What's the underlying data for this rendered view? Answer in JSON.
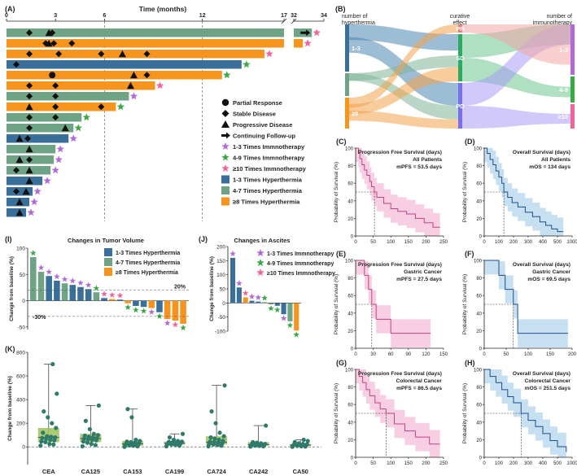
{
  "figure": {
    "panel_labels": [
      "(A)",
      "(B)",
      "(C)",
      "(D)",
      "(E)",
      "(F)",
      "(G)",
      "(H)",
      "(I)",
      "(J)",
      "(K)"
    ]
  },
  "colors": {
    "hyper_1_3": "#3a6f9a",
    "hyper_4_7": "#6fa386",
    "hyper_8": "#f7941d",
    "immuno_1_3": "#b36ad9",
    "immuno_4_9": "#3aa845",
    "immuno_10": "#f4629c",
    "pfs": "#c2438a",
    "pfs_band": "#f6c6dd",
    "os": "#1f4f8c",
    "os_band": "#bcd9ef",
    "box": "#9bc25a",
    "dot": "#2f7a6b"
  },
  "swimmer": {
    "title": "Time (months)",
    "ticks": [
      "0",
      "3",
      "6",
      "12",
      "17",
      "32",
      "34"
    ],
    "legend": [
      {
        "label": "Partial Response",
        "icon": "circle-icon"
      },
      {
        "label": "Stable Disease",
        "icon": "diamond-icon"
      },
      {
        "label": "Progressive Disease",
        "icon": "triangle-icon"
      },
      {
        "label": "Continuing Follow-up",
        "icon": "arrow-icon"
      },
      {
        "label": "1-3 Times Immnotherapy",
        "icon": "star-icon",
        "color": "#b36ad9"
      },
      {
        "label": "4-9 Times Immnotherapy",
        "icon": "star-icon",
        "color": "#3aa845"
      },
      {
        "label": "≥10 Times Immnotherapy",
        "icon": "star-icon",
        "color": "#f4629c"
      },
      {
        "label": "1-3 Times Hyperthermia",
        "icon": "square-icon",
        "color": "#3a6f9a"
      },
      {
        "label": "4-7 Times Hyperthermia",
        "icon": "square-icon",
        "color": "#6fa386"
      },
      {
        "label": "≥8 Times Hyperthermia",
        "icon": "square-icon",
        "color": "#f7941d"
      }
    ],
    "rows": [
      {
        "end": 33.2,
        "g": "4-7",
        "star": "10",
        "arrow": true,
        "markers": [
          [
            "d",
            1.4
          ],
          [
            "t",
            2.6
          ],
          [
            "d",
            2.8
          ]
        ]
      },
      {
        "end": 32.6,
        "g": "8",
        "star": "10",
        "markers": [
          [
            "d",
            2.4
          ],
          [
            "d",
            2.9
          ],
          [
            "t",
            2.6
          ],
          [
            "d",
            4.0
          ]
        ]
      },
      {
        "end": 15.8,
        "g": "8",
        "star": "10",
        "markers": [
          [
            "d",
            1.4
          ],
          [
            "d",
            3.2
          ],
          [
            "d",
            5.8
          ],
          [
            "t",
            7.1
          ],
          [
            "d",
            8.6
          ]
        ]
      },
      {
        "end": 14.4,
        "g": "1-3",
        "star": "4-9",
        "markers": [
          [
            "d",
            0.6
          ]
        ]
      },
      {
        "end": 13.2,
        "g": "8",
        "star": "4-9",
        "markers": [
          [
            "c",
            2.8
          ],
          [
            "t",
            7.8
          ],
          [
            "d",
            8.6
          ]
        ]
      },
      {
        "end": 9.1,
        "g": "8",
        "star": "10",
        "markers": [
          [
            "d",
            1.4
          ],
          [
            "d",
            3.0
          ],
          [
            "t",
            7.6
          ]
        ]
      },
      {
        "end": 7.5,
        "g": "4-7",
        "star": "1-3",
        "markers": [
          [
            "d",
            1.4
          ],
          [
            "d",
            3.0
          ]
        ]
      },
      {
        "end": 6.7,
        "g": "8",
        "star": "4-9",
        "markers": [
          [
            "t",
            1.4
          ],
          [
            "d",
            3.0
          ],
          [
            "d",
            5.8
          ]
        ]
      },
      {
        "end": 4.6,
        "g": "4-7",
        "star": "4-9",
        "markers": [
          [
            "d",
            1.4
          ],
          [
            "d",
            3.0
          ]
        ]
      },
      {
        "end": 4.1,
        "g": "4-7",
        "star": "4-9",
        "markers": [
          [
            "d",
            1.4
          ],
          [
            "t",
            3.6
          ]
        ]
      },
      {
        "end": 3.8,
        "g": "1-3",
        "star": "1-3",
        "markers": [
          [
            "t",
            0.8
          ],
          [
            "d",
            1.3
          ]
        ]
      },
      {
        "end": 3.0,
        "g": "4-7",
        "star": "1-3",
        "markers": [
          [
            "t",
            1.4
          ]
        ]
      },
      {
        "end": 2.9,
        "g": "4-7",
        "star": "1-3",
        "markers": [
          [
            "t",
            0.8
          ],
          [
            "d",
            1.4
          ]
        ]
      },
      {
        "end": 2.7,
        "g": "4-7",
        "star": "1-3",
        "markers": [
          [
            "t",
            1.4
          ],
          [
            "d",
            0.6
          ]
        ]
      },
      {
        "end": 2.2,
        "g": "1-3",
        "star": "1-3",
        "markers": [
          [
            "t",
            1.4
          ]
        ]
      },
      {
        "end": 1.6,
        "g": "1-3",
        "star": "1-3",
        "markers": [
          [
            "d",
            0.6
          ],
          [
            "t",
            1.2
          ]
        ]
      },
      {
        "end": 1.4,
        "g": "1-3",
        "star": "1-3",
        "markers": [
          [
            "t",
            0.8
          ]
        ]
      },
      {
        "end": 1.2,
        "g": "1-3",
        "star": "1-3",
        "markers": [
          [
            "t",
            0.8
          ]
        ]
      }
    ]
  },
  "sankey": {
    "left_title": "number of\nhyperthermia",
    "mid_title": "curative\neffect",
    "right_title": "number of\nimmunotherapy",
    "left": [
      {
        "label": "1-3",
        "color": "#3a6f9a"
      },
      {
        "label": "4-7",
        "color": "#6fa386"
      },
      {
        "label": "≥8",
        "color": "#f7941d"
      }
    ],
    "mid": [
      {
        "label": "PR",
        "color": "#f07c7c"
      },
      {
        "label": "SD",
        "color": "#2bab62"
      },
      {
        "label": "PD",
        "color": "#7a6ef0"
      }
    ],
    "right": [
      {
        "label": "1-3",
        "color": "#b36ad9"
      },
      {
        "label": "4-9",
        "color": "#3aa845"
      },
      {
        "label": "≥10",
        "color": "#f4629c"
      }
    ]
  },
  "km": [
    {
      "id": "C",
      "kind": "pfs",
      "title": "Progression Free Survival (days)",
      "subtitle": "All Patients",
      "stat": "mPFS = 53.5 days",
      "xticks": [
        "0",
        "50",
        "100",
        "150",
        "200",
        "250"
      ],
      "xmax": 250,
      "median": 53.5,
      "x": [
        0,
        8,
        12,
        18,
        25,
        32,
        40,
        45,
        53,
        60,
        80,
        100,
        120,
        145,
        170,
        195,
        220,
        240
      ],
      "y": [
        100,
        94,
        88,
        81,
        75,
        69,
        62,
        56,
        50,
        44,
        37,
        31,
        28,
        25,
        20,
        15,
        10,
        10
      ]
    },
    {
      "id": "D",
      "kind": "os",
      "title": "Overall  Survival (days)",
      "subtitle": "All Patients",
      "stat": "mOS = 134 days",
      "xticks": [
        "0",
        "100",
        "200",
        "300",
        "400",
        "500",
        "1000"
      ],
      "xmax": 600,
      "median": 134,
      "x": [
        0,
        20,
        40,
        60,
        80,
        100,
        120,
        134,
        160,
        190,
        230,
        280,
        330,
        380,
        420,
        460,
        500,
        540
      ],
      "y": [
        100,
        94,
        87,
        81,
        74,
        67,
        60,
        50,
        44,
        38,
        33,
        27,
        22,
        16,
        12,
        8,
        5,
        5
      ]
    },
    {
      "id": "E",
      "kind": "pfs",
      "title": "Progression Free Survival (days)",
      "subtitle": "Gastric Cancer",
      "stat": "mPFS = 27.5 days",
      "xticks": [
        "0",
        "30",
        "60",
        "90",
        "120",
        "150"
      ],
      "xmax": 150,
      "median": 27.5,
      "x": [
        0,
        15,
        22,
        27.5,
        35,
        60,
        128
      ],
      "y": [
        100,
        83,
        67,
        50,
        33,
        17,
        17
      ]
    },
    {
      "id": "F",
      "kind": "os",
      "title": "Overall  Survival (days)",
      "subtitle": "Gastric Cancer",
      "stat": "mOS = 69.5 days",
      "xticks": [
        "0",
        "50",
        "100",
        "150",
        "200"
      ],
      "xmax": 210,
      "median": 69.5,
      "x": [
        0,
        35,
        50,
        69.5,
        80,
        200
      ],
      "y": [
        100,
        83,
        67,
        50,
        17,
        17
      ]
    },
    {
      "id": "G",
      "kind": "pfs",
      "title": "Progression Free Survival (days)",
      "subtitle": "Colorectal Cancer",
      "stat": "mPFS = 86.5 days",
      "xticks": [
        "0",
        "50",
        "100",
        "150",
        "200",
        "250"
      ],
      "xmax": 250,
      "median": 86.5,
      "x": [
        0,
        10,
        20,
        30,
        40,
        55,
        70,
        86.5,
        110,
        140,
        170,
        210,
        240
      ],
      "y": [
        100,
        92,
        85,
        77,
        70,
        62,
        55,
        50,
        38,
        30,
        23,
        15,
        15
      ]
    },
    {
      "id": "H",
      "kind": "os",
      "title": "Overall  Survival (days)",
      "subtitle": "Colorectal Cancer",
      "stat": "mOS = 251.5 days",
      "xticks": [
        "0",
        "100",
        "200",
        "300",
        "400",
        "500",
        "1000"
      ],
      "xmax": 600,
      "median": 251.5,
      "x": [
        0,
        40,
        80,
        120,
        160,
        200,
        251.5,
        300,
        350,
        400,
        450,
        500,
        560
      ],
      "y": [
        100,
        92,
        85,
        77,
        69,
        62,
        50,
        42,
        35,
        27,
        19,
        12,
        6
      ]
    }
  ],
  "km_axis_label": "Probability of Survival (%)",
  "km_yticks": [
    "0",
    "20",
    "40",
    "60",
    "80",
    "100"
  ],
  "tumor": {
    "title": "Changes in Tumor Volume",
    "ylabel": "Change from baseline (%)",
    "yticks": [
      "100",
      "50",
      "0",
      "-50"
    ],
    "ref_hi": "20%",
    "ref_lo": "-30%",
    "legend": [
      "1-3 Times Hyperthermia",
      "4-7 Times Hyperthermia",
      "≥8 Times Hyperthermia"
    ],
    "values": [
      83,
      55,
      47,
      38,
      33,
      30,
      26,
      22,
      16,
      5,
      3,
      2,
      -5,
      -10,
      -12,
      -14,
      -22,
      -35,
      -38,
      -44
    ],
    "groups": [
      "4-7",
      "4-7",
      "1-3",
      "1-3",
      "4-7",
      "1-3",
      "1-3",
      "1-3",
      "4-7",
      "1-3",
      "8",
      "1-3",
      "8",
      "1-3",
      "1-3",
      "8",
      "1-3",
      "8",
      "8",
      "8"
    ],
    "stars": [
      "4-9",
      "1-3",
      "1-3",
      "1-3",
      "1-3",
      "1-3",
      "1-3",
      "1-3",
      "4-9",
      "10",
      "10",
      "10",
      "4-9",
      "4-9",
      "4-9",
      "1-3",
      "4-9",
      "1-3",
      "10",
      "4-9"
    ]
  },
  "ascites": {
    "title": "Changes in Ascites",
    "ylabel": "Change from baseline (%)",
    "yticks": [
      "200",
      "150",
      "100",
      "50",
      "0",
      "-50",
      "-100"
    ],
    "legend": [
      "1-3 Times Immnotherapy",
      "4-9 Times Immnotherapy",
      "≥10 Times Immnotherapy"
    ],
    "values": [
      160,
      55,
      20,
      8,
      5,
      3,
      -5,
      -10,
      -40,
      -65,
      -98
    ],
    "groups": [
      "1-3",
      "1-3",
      "8",
      "1-3",
      "1-3",
      "4-7",
      "4-7",
      "1-3",
      "1-3",
      "4-7",
      "8"
    ],
    "stars": [
      "1-3",
      "1-3",
      "10",
      "1-3",
      "1-3",
      "4-9",
      "4-9",
      "4-9",
      "1-3",
      "4-9",
      "4-9"
    ]
  },
  "biomarkers": {
    "ylabel": "Change from baseline (%)",
    "yticks": [
      "0",
      "200",
      "400",
      "600",
      "800"
    ],
    "categories": [
      "CEA",
      "CA125",
      "CA153",
      "CA199",
      "CA724",
      "CA242",
      "CA50"
    ],
    "boxes": [
      {
        "min": 0,
        "q1": 40,
        "median": 80,
        "q3": 160,
        "max": 700
      },
      {
        "min": 0,
        "q1": 40,
        "median": 70,
        "q3": 110,
        "max": 350
      },
      {
        "min": 0,
        "q1": 10,
        "median": 25,
        "q3": 50,
        "max": 320
      },
      {
        "min": 0,
        "q1": 20,
        "median": 30,
        "q3": 45,
        "max": 110
      },
      {
        "min": 0,
        "q1": 20,
        "median": 40,
        "q3": 90,
        "max": 520
      },
      {
        "min": 0,
        "q1": 10,
        "median": 20,
        "q3": 40,
        "max": 180
      },
      {
        "min": 0,
        "q1": 8,
        "median": 15,
        "q3": 25,
        "max": 60
      }
    ],
    "points": [
      [
        10,
        20,
        25,
        40,
        45,
        55,
        60,
        70,
        75,
        80,
        85,
        90,
        120,
        160,
        200,
        250,
        300,
        450,
        700
      ],
      [
        5,
        15,
        25,
        35,
        45,
        55,
        60,
        65,
        70,
        75,
        80,
        85,
        95,
        100,
        110,
        150,
        220,
        350
      ],
      [
        0,
        5,
        10,
        12,
        15,
        18,
        20,
        22,
        25,
        30,
        35,
        40,
        45,
        50,
        60,
        250,
        320
      ],
      [
        5,
        10,
        15,
        20,
        22,
        25,
        28,
        30,
        32,
        35,
        38,
        40,
        42,
        45,
        50,
        60,
        80,
        110
      ],
      [
        5,
        10,
        15,
        20,
        25,
        30,
        35,
        40,
        45,
        50,
        60,
        70,
        80,
        90,
        120,
        200,
        300,
        520
      ],
      [
        2,
        5,
        8,
        10,
        12,
        15,
        18,
        20,
        22,
        25,
        30,
        35,
        40,
        180
      ],
      [
        0,
        3,
        5,
        8,
        10,
        12,
        15,
        18,
        20,
        22,
        25,
        30,
        40,
        50,
        60
      ]
    ]
  }
}
